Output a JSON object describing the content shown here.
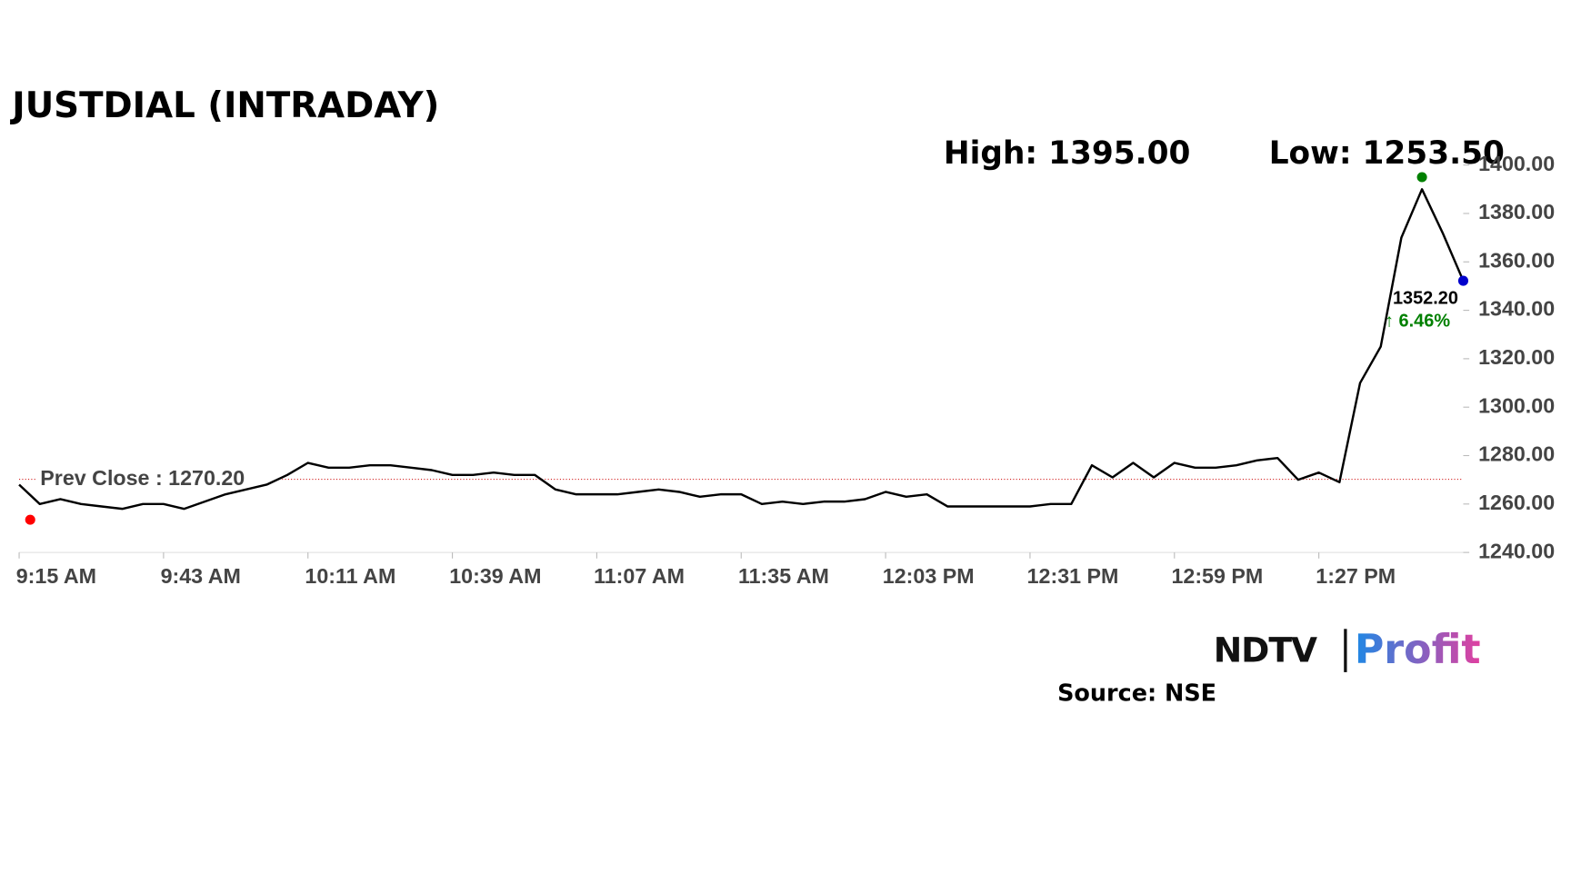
{
  "chart_data": {
    "type": "line",
    "title": "JUSTDIAL (INTRADAY)",
    "high_label": "High: 1395.00",
    "high": 1395,
    "low_label": "Low: 1253.50",
    "low": 1253.5,
    "prev_close_label": "Prev Close : 1270.20",
    "prev_close": 1270.2,
    "last_label": "1352.20",
    "change_label": "↑ 6.46%",
    "source": "Source: NSE",
    "brand": [
      "NDTV",
      "Profit"
    ],
    "categories": [
      "9:15 AM",
      null,
      null,
      null,
      null,
      null,
      null,
      "9:43 AM",
      null,
      null,
      null,
      null,
      null,
      null,
      "10:11 AM",
      null,
      null,
      null,
      null,
      null,
      null,
      "10:39 AM",
      null,
      null,
      null,
      null,
      null,
      null,
      "11:07 AM",
      null,
      null,
      null,
      null,
      null,
      null,
      "11:35 AM",
      null,
      null,
      null,
      null,
      null,
      null,
      "12:03 PM",
      null,
      null,
      null,
      null,
      null,
      null,
      "12:31 PM",
      null,
      null,
      null,
      null,
      null,
      null,
      "12:59 PM",
      null,
      null,
      null,
      null,
      null,
      null,
      "1:27 PM",
      null,
      null,
      null,
      null,
      null,
      null,
      null
    ],
    "series": [
      {
        "color": "#000000",
        "values": [
          1268,
          1260,
          1262,
          1260,
          1259,
          1258,
          1260,
          1260,
          1258,
          1261,
          1264,
          1266,
          1268,
          1272,
          1277,
          1275,
          1275,
          1276,
          1276,
          1275,
          1274,
          1272,
          1272,
          1273,
          1272,
          1272,
          1266,
          1264,
          1264,
          1264,
          1265,
          1266,
          1265,
          1263,
          1264,
          1264,
          1260,
          1261,
          1260,
          1261,
          1261,
          1262,
          1265,
          1263,
          1264,
          1259,
          1259,
          1259,
          1259,
          1259,
          1260,
          1260,
          1276,
          1271,
          1277,
          1271,
          1277,
          1275,
          1275,
          1276,
          1278,
          1279,
          1270,
          1273,
          1269,
          1310,
          1325,
          1370,
          1390,
          1372,
          1352.2
        ]
      }
    ],
    "ylim": [
      1240,
      1400
    ],
    "yticks": [
      {
        "value": 1240,
        "label": "1240.00"
      },
      {
        "value": 1260,
        "label": "1260.00"
      },
      {
        "value": 1280,
        "label": "1280.00"
      },
      {
        "value": 1300,
        "label": "1300.00"
      },
      {
        "value": 1320,
        "label": "1320.00"
      },
      {
        "value": 1340,
        "label": "1340.00"
      },
      {
        "value": 1360,
        "label": "1360.00"
      },
      {
        "value": 1380,
        "label": "1380.00"
      },
      {
        "value": 1400,
        "label": "1400.00"
      }
    ]
  }
}
